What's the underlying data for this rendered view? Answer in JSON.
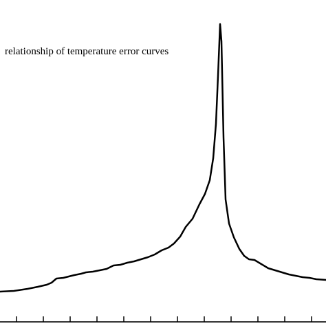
{
  "chart_data": {
    "type": "line",
    "annotation": "relationship of temperature error curves",
    "title": "",
    "xlabel": "",
    "ylabel": "",
    "x_tick_count": 13,
    "grid": false,
    "series": [
      {
        "points": [
          [
            0,
            424
          ],
          [
            20,
            423
          ],
          [
            40,
            420
          ],
          [
            55,
            417
          ],
          [
            68,
            414
          ],
          [
            75,
            411
          ],
          [
            82,
            405
          ],
          [
            92,
            404
          ],
          [
            100,
            402
          ],
          [
            108,
            400
          ],
          [
            118,
            398
          ],
          [
            125,
            396
          ],
          [
            135,
            395
          ],
          [
            145,
            393
          ],
          [
            155,
            391
          ],
          [
            165,
            386
          ],
          [
            175,
            385
          ],
          [
            185,
            382
          ],
          [
            195,
            380
          ],
          [
            205,
            377
          ],
          [
            215,
            374
          ],
          [
            225,
            370
          ],
          [
            235,
            364
          ],
          [
            245,
            360
          ],
          [
            253,
            354
          ],
          [
            262,
            344
          ],
          [
            270,
            330
          ],
          [
            280,
            318
          ],
          [
            290,
            297
          ],
          [
            298,
            282
          ],
          [
            305,
            262
          ],
          [
            310,
            230
          ],
          [
            314,
            180
          ],
          [
            317,
            110
          ],
          [
            319,
            60
          ],
          [
            320,
            35
          ],
          [
            322,
            60
          ],
          [
            325,
            200
          ],
          [
            328,
            290
          ],
          [
            333,
            325
          ],
          [
            340,
            345
          ],
          [
            348,
            362
          ],
          [
            355,
            372
          ],
          [
            362,
            377
          ],
          [
            370,
            378
          ],
          [
            380,
            384
          ],
          [
            390,
            390
          ],
          [
            400,
            393
          ],
          [
            410,
            396
          ],
          [
            420,
            399
          ],
          [
            430,
            401
          ],
          [
            440,
            403
          ],
          [
            450,
            404
          ],
          [
            460,
            406
          ],
          [
            474,
            407
          ]
        ]
      }
    ]
  }
}
